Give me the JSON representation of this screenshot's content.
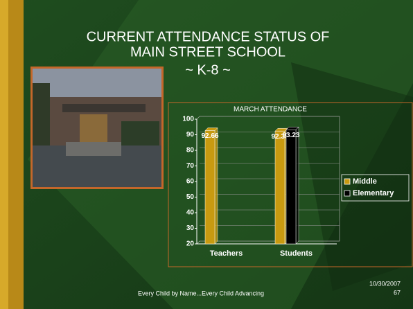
{
  "slide": {
    "title_lines": [
      "CURRENT ATTENDANCE STATUS OF",
      "MAIN  STREET SCHOOL",
      "~ K-8 ~"
    ],
    "footer": "Every Child by Name...Every Child Advancing",
    "date": "10/30/2007",
    "page_number": "67"
  },
  "chart_data": {
    "type": "bar",
    "title": "MARCH ATTENDANCE",
    "categories": [
      "Teachers",
      "Students"
    ],
    "series": [
      {
        "name": "Middle",
        "color": "#c89a10",
        "values": [
          92.66,
          92.35
        ]
      },
      {
        "name": "Elementary",
        "color": "#000000",
        "values": [
          null,
          93.23
        ]
      }
    ],
    "ylim": [
      20,
      100
    ],
    "yticks": [
      20,
      30,
      40,
      50,
      60,
      70,
      80,
      90,
      100
    ],
    "grid": true,
    "legend": "right"
  }
}
